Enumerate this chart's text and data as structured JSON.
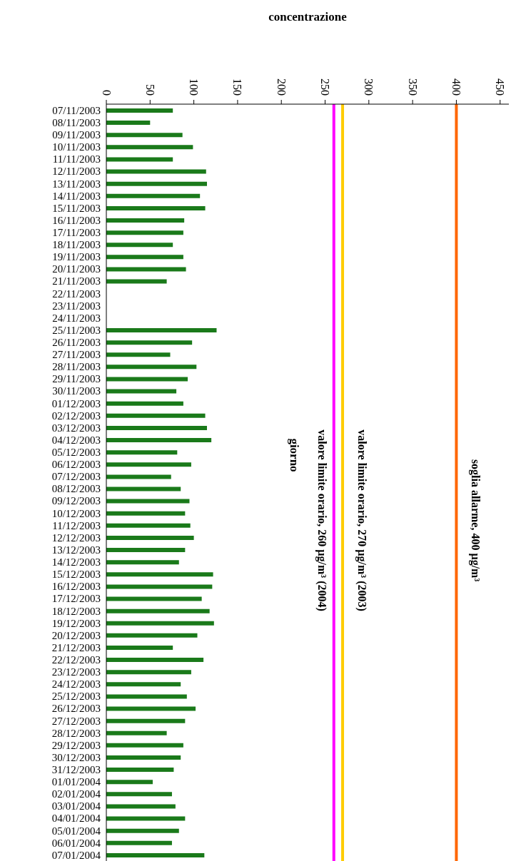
{
  "chart_data": {
    "type": "bar",
    "orientation": "horizontal",
    "xlabel": "concentrazione",
    "ylabel": "giorno",
    "categories": [
      "07/11/2003",
      "08/11/2003",
      "09/11/2003",
      "10/11/2003",
      "11/11/2003",
      "12/11/2003",
      "13/11/2003",
      "14/11/2003",
      "15/11/2003",
      "16/11/2003",
      "17/11/2003",
      "18/11/2003",
      "19/11/2003",
      "20/11/2003",
      "21/11/2003",
      "22/11/2003",
      "23/11/2003",
      "24/11/2003",
      "25/11/2003",
      "26/11/2003",
      "27/11/2003",
      "28/11/2003",
      "29/11/2003",
      "30/11/2003",
      "01/12/2003",
      "02/12/2003",
      "03/12/2003",
      "04/12/2003",
      "05/12/2003",
      "06/12/2003",
      "07/12/2003",
      "08/12/2003",
      "09/12/2003",
      "10/12/2003",
      "11/12/2003",
      "12/12/2003",
      "13/12/2003",
      "14/12/2003",
      "15/12/2003",
      "16/12/2003",
      "17/12/2003",
      "18/12/2003",
      "19/12/2003",
      "20/12/2003",
      "21/12/2003",
      "22/12/2003",
      "23/12/2003",
      "24/12/2003",
      "25/12/2003",
      "26/12/2003",
      "27/12/2003",
      "28/12/2003",
      "29/12/2003",
      "30/12/2003",
      "31/12/2003",
      "01/01/2004",
      "02/01/2004",
      "03/01/2004",
      "04/01/2004",
      "05/01/2004",
      "06/01/2004",
      "07/01/2004"
    ],
    "values": [
      76,
      50,
      87,
      99,
      76,
      114,
      115,
      107,
      113,
      89,
      88,
      76,
      88,
      91,
      69,
      null,
      null,
      null,
      126,
      98,
      73,
      103,
      93,
      80,
      88,
      113,
      115,
      120,
      81,
      97,
      74,
      85,
      95,
      90,
      96,
      100,
      90,
      83,
      122,
      121,
      109,
      118,
      123,
      104,
      76,
      111,
      97,
      85,
      92,
      102,
      90,
      69,
      88,
      85,
      77,
      53,
      75,
      79,
      90,
      83,
      75,
      112
    ],
    "color": "#1a7a1a",
    "xlim": [
      0,
      460
    ],
    "xticks": [
      0,
      50,
      100,
      150,
      200,
      250,
      300,
      350,
      400,
      450
    ],
    "ref_lines": [
      {
        "axis": "x",
        "value": 400,
        "label": "soglia allarme, 400 µg/m³",
        "color": "#ff6600"
      },
      {
        "axis": "x",
        "value": 270,
        "label": "valore limite orario, 270 µg/m³ (2003)",
        "color": "#ffcc00"
      },
      {
        "axis": "x",
        "value": 260,
        "label": "valore limite orario, 260 µg/m³ (2004)",
        "color": "#ff00ff"
      }
    ],
    "grid": false,
    "legend": false
  }
}
